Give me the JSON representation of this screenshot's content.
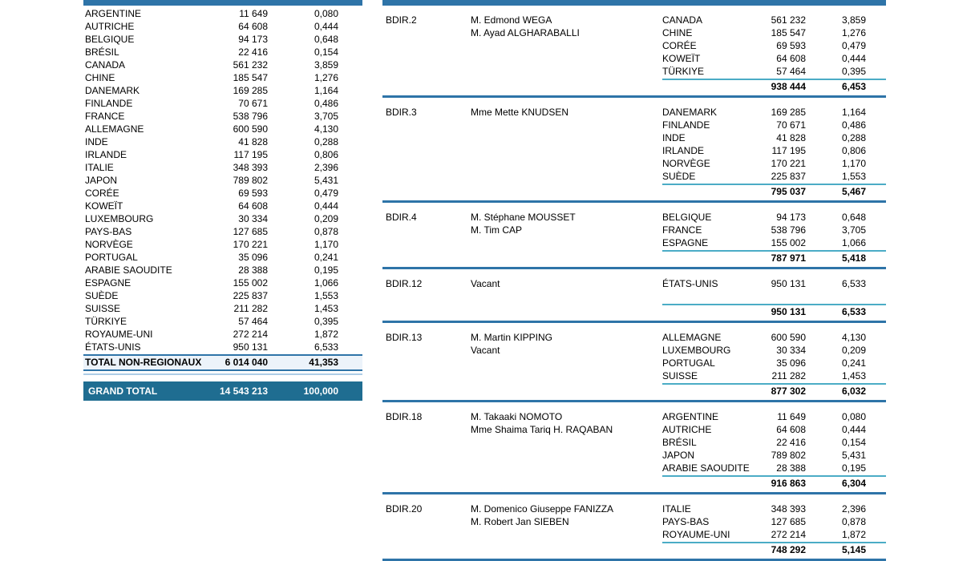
{
  "colors": {
    "bar_blue": "#2e74a8",
    "teal_rule": "#4bacc6",
    "grand_total_bg": "#1f6d91",
    "total_row_bg": "#ecf3fa",
    "total_underline_light": "#aecde6",
    "text": "#000000"
  },
  "left_table": {
    "rows": [
      {
        "label": "ARGENTINE",
        "value": "11 649",
        "pct": "0,080"
      },
      {
        "label": "AUTRICHE",
        "value": "64 608",
        "pct": "0,444"
      },
      {
        "label": "BELGIQUE",
        "value": "94 173",
        "pct": "0,648"
      },
      {
        "label": "BRÉSIL",
        "value": "22 416",
        "pct": "0,154"
      },
      {
        "label": "CANADA",
        "value": "561 232",
        "pct": "3,859"
      },
      {
        "label": "CHINE",
        "value": "185 547",
        "pct": "1,276"
      },
      {
        "label": "DANEMARK",
        "value": "169 285",
        "pct": "1,164"
      },
      {
        "label": "FINLANDE",
        "value": "70 671",
        "pct": "0,486"
      },
      {
        "label": "FRANCE",
        "value": "538 796",
        "pct": "3,705"
      },
      {
        "label": "ALLEMAGNE",
        "value": "600 590",
        "pct": "4,130"
      },
      {
        "label": "INDE",
        "value": "41 828",
        "pct": "0,288"
      },
      {
        "label": "IRLANDE",
        "value": "117 195",
        "pct": "0,806"
      },
      {
        "label": "ITALIE",
        "value": "348 393",
        "pct": "2,396"
      },
      {
        "label": "JAPON",
        "value": "789 802",
        "pct": "5,431"
      },
      {
        "label": "CORÉE",
        "value": "69 593",
        "pct": "0,479"
      },
      {
        "label": "KOWEÏT",
        "value": "64 608",
        "pct": "0,444"
      },
      {
        "label": "LUXEMBOURG",
        "value": "30 334",
        "pct": "0,209"
      },
      {
        "label": "PAYS-BAS",
        "value": "127 685",
        "pct": "0,878"
      },
      {
        "label": "NORVÈGE",
        "value": "170 221",
        "pct": "1,170"
      },
      {
        "label": "PORTUGAL",
        "value": "35 096",
        "pct": "0,241"
      },
      {
        "label": "ARABIE SAOUDITE",
        "value": "28 388",
        "pct": "0,195"
      },
      {
        "label": "ESPAGNE",
        "value": "155 002",
        "pct": "1,066"
      },
      {
        "label": "SUÈDE",
        "value": "225 837",
        "pct": "1,553"
      },
      {
        "label": "SUISSE",
        "value": "211 282",
        "pct": "1,453"
      },
      {
        "label": "TÜRKIYE",
        "value": "57 464",
        "pct": "0,395"
      },
      {
        "label": "ROYAUME-UNI",
        "value": "272 214",
        "pct": "1,872"
      },
      {
        "label": "ÉTATS-UNIS",
        "value": "950 131",
        "pct": "6,533"
      }
    ],
    "total": {
      "label": "TOTAL NON-REGIONAUX",
      "value": "6 014 040",
      "pct": "41,353"
    },
    "grand_total": {
      "label": "GRAND TOTAL",
      "value": "14 543 213",
      "pct": "100,000"
    }
  },
  "right_table": {
    "groups": [
      {
        "code": "BDIR.2",
        "names": [
          "M. Edmond WEGA",
          "M. Ayad ALGHARABALLI"
        ],
        "rows": [
          {
            "label": "CANADA",
            "value": "561 232",
            "pct": "3,859"
          },
          {
            "label": "CHINE",
            "value": "185 547",
            "pct": "1,276"
          },
          {
            "label": "CORÉE",
            "value": "69 593",
            "pct": "0,479"
          },
          {
            "label": "KOWEÏT",
            "value": "64 608",
            "pct": "0,444"
          },
          {
            "label": "TÜRKIYE",
            "value": "57 464",
            "pct": "0,395"
          }
        ],
        "spacer_rows": 0,
        "subtotal": {
          "value": "938 444",
          "pct": "6,453"
        }
      },
      {
        "code": "BDIR.3",
        "names": [
          "Mme Mette KNUDSEN"
        ],
        "rows": [
          {
            "label": "DANEMARK",
            "value": "169 285",
            "pct": "1,164"
          },
          {
            "label": "FINLANDE",
            "value": "70 671",
            "pct": "0,486"
          },
          {
            "label": "INDE",
            "value": "41 828",
            "pct": "0,288"
          },
          {
            "label": "IRLANDE",
            "value": "117 195",
            "pct": "0,806"
          },
          {
            "label": "NORVÈGE",
            "value": "170 221",
            "pct": "1,170"
          },
          {
            "label": "SUÈDE",
            "value": "225 837",
            "pct": "1,553"
          }
        ],
        "spacer_rows": 0,
        "subtotal": {
          "value": "795 037",
          "pct": "5,467"
        }
      },
      {
        "code": "BDIR.4",
        "names": [
          "M. Stéphane MOUSSET",
          "M. Tim CAP"
        ],
        "rows": [
          {
            "label": "BELGIQUE",
            "value": "94 173",
            "pct": "0,648"
          },
          {
            "label": "FRANCE",
            "value": "538 796",
            "pct": "3,705"
          },
          {
            "label": "ESPAGNE",
            "value": "155 002",
            "pct": "1,066"
          }
        ],
        "spacer_rows": 0,
        "subtotal": {
          "value": "787 971",
          "pct": "5,418"
        }
      },
      {
        "code": "BDIR.12",
        "names": [
          "Vacant"
        ],
        "rows": [
          {
            "label": "ÉTATS-UNIS",
            "value": "950 131",
            "pct": "6,533"
          }
        ],
        "spacer_rows": 1,
        "subtotal": {
          "value": "950 131",
          "pct": "6,533"
        }
      },
      {
        "code": "BDIR.13",
        "names": [
          "M. Martin KIPPING",
          "Vacant"
        ],
        "rows": [
          {
            "label": "ALLEMAGNE",
            "value": "600 590",
            "pct": "4,130"
          },
          {
            "label": "LUXEMBOURG",
            "value": "30 334",
            "pct": "0,209"
          },
          {
            "label": "PORTUGAL",
            "value": "35 096",
            "pct": "0,241"
          },
          {
            "label": "SUISSE",
            "value": "211 282",
            "pct": "1,453"
          }
        ],
        "spacer_rows": 0,
        "subtotal": {
          "value": "877 302",
          "pct": "6,032"
        }
      },
      {
        "code": "BDIR.18",
        "names": [
          "M. Takaaki NOMOTO",
          "Mme Shaima Tariq H. RAQABAN"
        ],
        "rows": [
          {
            "label": "ARGENTINE",
            "value": "11 649",
            "pct": "0,080"
          },
          {
            "label": "AUTRICHE",
            "value": "64 608",
            "pct": "0,444"
          },
          {
            "label": "BRÉSIL",
            "value": "22 416",
            "pct": "0,154"
          },
          {
            "label": "JAPON",
            "value": "789 802",
            "pct": "5,431"
          },
          {
            "label": "ARABIE SAOUDITE",
            "value": "28 388",
            "pct": "0,195"
          }
        ],
        "spacer_rows": 0,
        "subtotal": {
          "value": "916 863",
          "pct": "6,304"
        }
      },
      {
        "code": "BDIR.20",
        "names": [
          "M. Domenico Giuseppe FANIZZA",
          "M. Robert Jan SIEBEN"
        ],
        "rows": [
          {
            "label": "ITALIE",
            "value": "348 393",
            "pct": "2,396"
          },
          {
            "label": "PAYS-BAS",
            "value": "127 685",
            "pct": "0,878"
          },
          {
            "label": "ROYAUME-UNI",
            "value": "272 214",
            "pct": "1,872"
          }
        ],
        "spacer_rows": 0,
        "subtotal": {
          "value": "748 292",
          "pct": "5,145"
        }
      }
    ]
  }
}
